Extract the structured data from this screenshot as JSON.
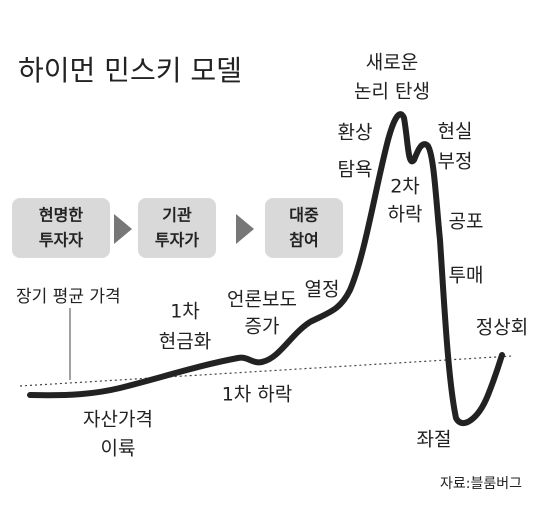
{
  "title": "하이먼 민스키 모델",
  "stages": [
    {
      "lines": [
        "현명한",
        "투자자"
      ]
    },
    {
      "lines": [
        "기관",
        "투자가"
      ]
    },
    {
      "lines": [
        "대중",
        "참여"
      ]
    }
  ],
  "average_label": "장기 평균 가격",
  "annotations": [
    {
      "lines": [
        "자산가격",
        "이륙"
      ]
    },
    {
      "lines": [
        "1차",
        "현금화"
      ]
    },
    {
      "lines": [
        "언론보도",
        "증가"
      ]
    },
    {
      "lines": [
        "1차 하락"
      ]
    },
    {
      "lines": [
        "열정"
      ]
    },
    {
      "lines": [
        "환상",
        "탐욕"
      ]
    },
    {
      "lines": [
        "새로운",
        "논리 탄생"
      ]
    },
    {
      "lines": [
        "2차",
        "하락"
      ]
    },
    {
      "lines": [
        "현실",
        "부정"
      ]
    },
    {
      "lines": [
        "공포"
      ]
    },
    {
      "lines": [
        "투매"
      ]
    },
    {
      "lines": [
        "좌절"
      ]
    },
    {
      "lines": [
        "정상회"
      ]
    }
  ],
  "source": "자료:블룸버그"
}
